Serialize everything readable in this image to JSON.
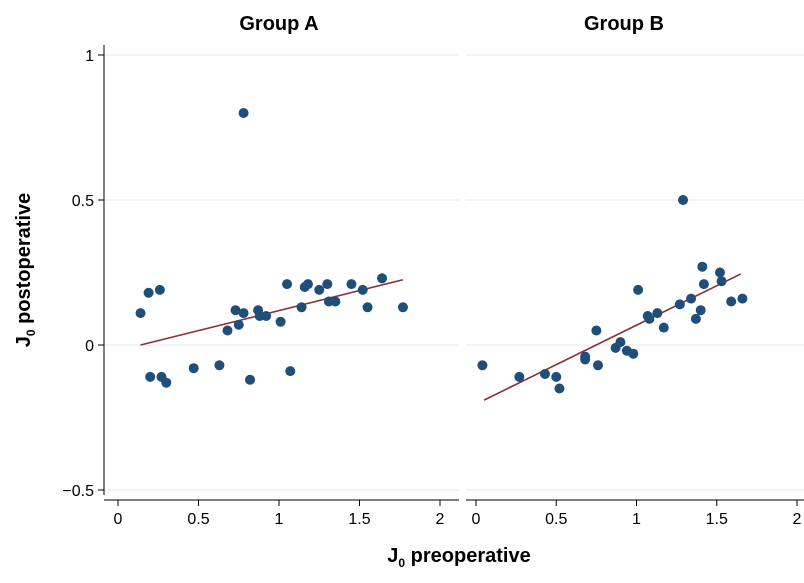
{
  "chart_data": {
    "type": "scatter",
    "xlabel": "J",
    "xlabel_sub": "0",
    "xlabel_rest": " preoperative",
    "ylabel": "J",
    "ylabel_sub": "0",
    "ylabel_rest": " postoperative",
    "xlim": [
      0,
      2
    ],
    "ylim": [
      -0.5,
      1
    ],
    "xticks": [
      0,
      0.5,
      1,
      1.5,
      2
    ],
    "yticks": [
      -0.5,
      0,
      0.5,
      1
    ],
    "xtick_labels": [
      "0",
      "0.5",
      "1",
      "1.5",
      "2"
    ],
    "ytick_labels": [
      "−0.5",
      "0",
      "0.5",
      "1"
    ],
    "grid": "horizontal",
    "colors": {
      "points": "#1f4e79",
      "fit_line": "#8b2f3a",
      "grid": "#e6ecf2",
      "axis": "#000000"
    },
    "panels": [
      {
        "title": "Group A",
        "points": [
          [
            0.14,
            0.11
          ],
          [
            0.19,
            0.18
          ],
          [
            0.26,
            0.19
          ],
          [
            0.2,
            -0.11
          ],
          [
            0.27,
            -0.11
          ],
          [
            0.3,
            -0.13
          ],
          [
            0.47,
            -0.08
          ],
          [
            0.63,
            -0.07
          ],
          [
            0.68,
            0.05
          ],
          [
            0.73,
            0.12
          ],
          [
            0.75,
            0.07
          ],
          [
            0.78,
            0.11
          ],
          [
            0.78,
            0.8
          ],
          [
            0.82,
            -0.12
          ],
          [
            0.87,
            0.12
          ],
          [
            0.88,
            0.1
          ],
          [
            0.92,
            0.1
          ],
          [
            1.01,
            0.08
          ],
          [
            1.05,
            0.21
          ],
          [
            1.07,
            -0.09
          ],
          [
            1.14,
            0.13
          ],
          [
            1.16,
            0.2
          ],
          [
            1.18,
            0.21
          ],
          [
            1.25,
            0.19
          ],
          [
            1.3,
            0.21
          ],
          [
            1.31,
            0.15
          ],
          [
            1.35,
            0.15
          ],
          [
            1.45,
            0.21
          ],
          [
            1.52,
            0.19
          ],
          [
            1.55,
            0.13
          ],
          [
            1.64,
            0.23
          ],
          [
            1.77,
            0.13
          ]
        ],
        "fit": [
          [
            0.14,
            0.0
          ],
          [
            1.77,
            0.225
          ]
        ]
      },
      {
        "title": "Group B",
        "points": [
          [
            0.04,
            -0.07
          ],
          [
            0.27,
            -0.11
          ],
          [
            0.43,
            -0.1
          ],
          [
            0.5,
            -0.11
          ],
          [
            0.52,
            -0.15
          ],
          [
            0.68,
            -0.04
          ],
          [
            0.68,
            -0.05
          ],
          [
            0.75,
            0.05
          ],
          [
            0.76,
            -0.07
          ],
          [
            0.87,
            -0.01
          ],
          [
            0.9,
            0.01
          ],
          [
            0.94,
            -0.02
          ],
          [
            0.98,
            -0.03
          ],
          [
            1.01,
            0.19
          ],
          [
            1.07,
            0.1
          ],
          [
            1.08,
            0.09
          ],
          [
            1.13,
            0.11
          ],
          [
            1.17,
            0.06
          ],
          [
            1.27,
            0.14
          ],
          [
            1.29,
            0.5
          ],
          [
            1.34,
            0.16
          ],
          [
            1.37,
            0.09
          ],
          [
            1.4,
            0.12
          ],
          [
            1.41,
            0.27
          ],
          [
            1.42,
            0.21
          ],
          [
            1.52,
            0.25
          ],
          [
            1.53,
            0.22
          ],
          [
            1.59,
            0.15
          ],
          [
            1.66,
            0.16
          ]
        ],
        "fit": [
          [
            0.05,
            -0.19
          ],
          [
            1.65,
            0.245
          ]
        ]
      }
    ]
  }
}
